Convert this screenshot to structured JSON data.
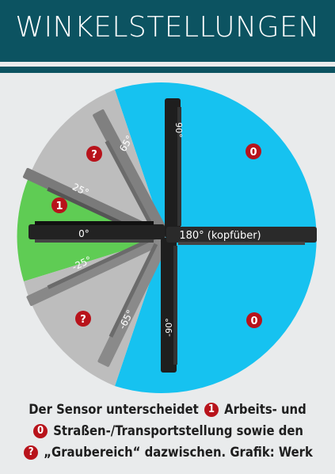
{
  "header": {
    "title": "WINKELSTELLUNGEN"
  },
  "colors": {
    "header_bg": "#0c5361",
    "work_zone": "#5fcc54",
    "grey_zone": "#bdbdbd",
    "transport_zone": "#16c2f0",
    "badge": "#b8131b"
  },
  "diagram": {
    "angles": {
      "a0": "0°",
      "a25": "25°",
      "a65": "65°",
      "a90": "90°",
      "a180": "180° (kopfüber)",
      "m25": "-25°",
      "m65": "-65°",
      "m90": "-90°"
    },
    "badges": {
      "work": "1",
      "grey_upper": "?",
      "grey_lower": "?",
      "transport_upper": "0",
      "transport_lower": "0"
    }
  },
  "caption": {
    "line1_a": "Der Sensor unterscheidet",
    "line1_badge": "1",
    "line1_b": "Arbeits- und",
    "line2_badge": "0",
    "line2_b": "Straßen-/Transportstellung sowie den",
    "line3_badge": "?",
    "line3_b": "„Graubereich“ dazwischen. Grafik: Werk"
  }
}
